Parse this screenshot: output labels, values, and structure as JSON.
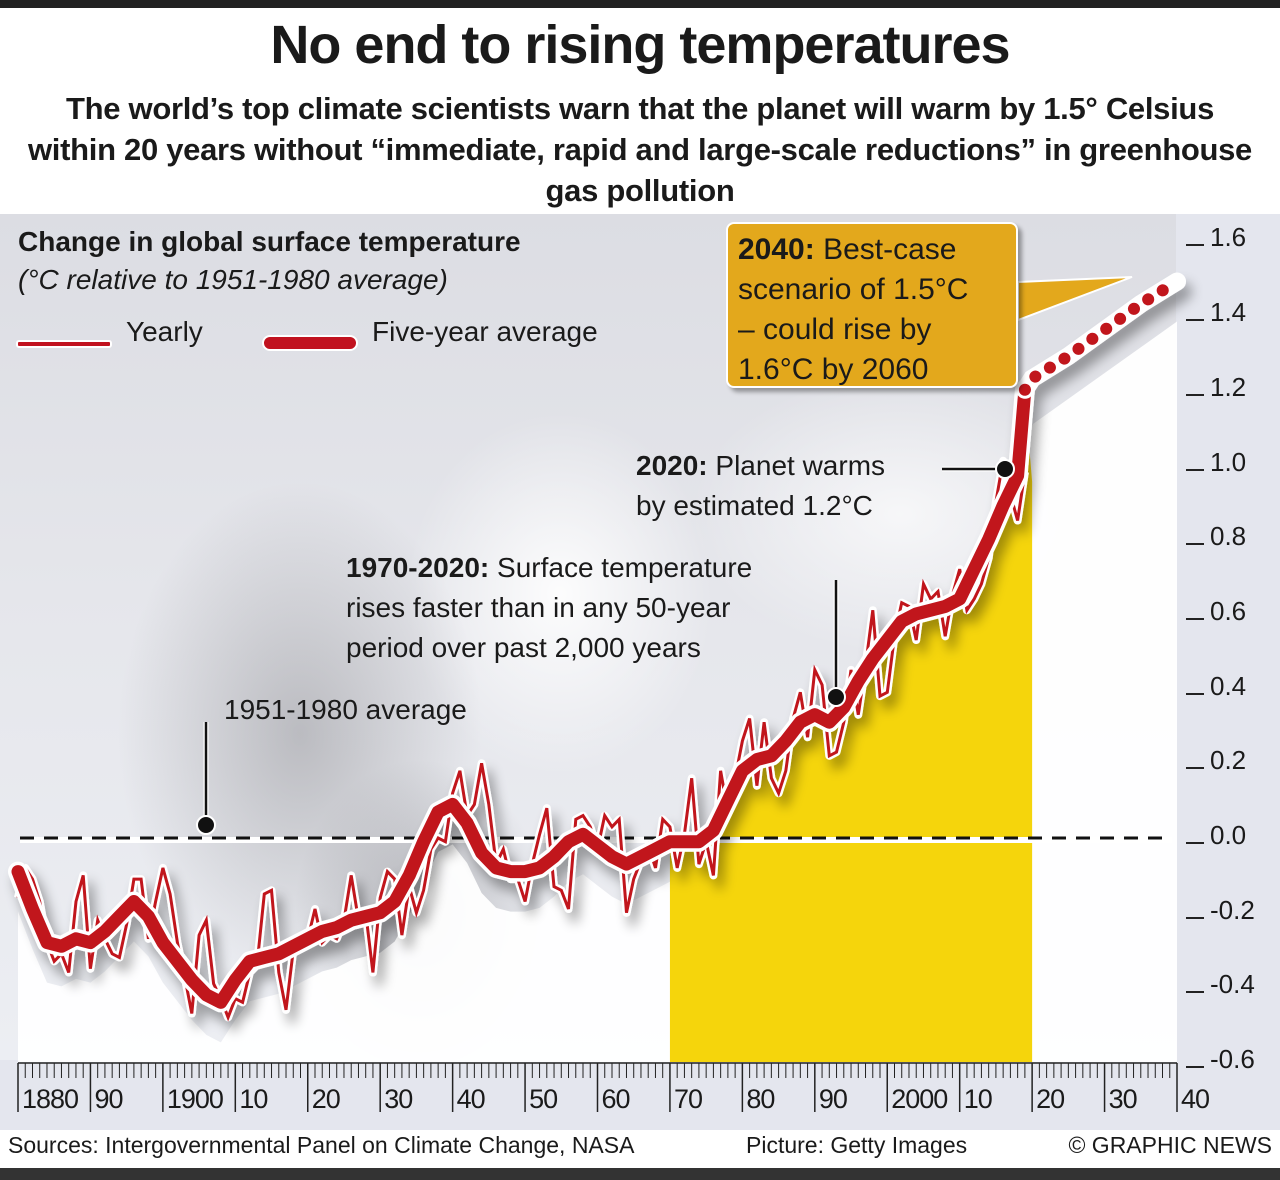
{
  "title": "No end to rising temperatures",
  "subtitle": "The world’s top climate scientists warn that the planet will warm by 1.5° Celsius within 20 years without “immediate, rapid and large-scale reductions” in greenhouse gas pollution",
  "footer": {
    "sources": "Sources: Intergovernmental Panel on Climate Change, NASA",
    "picture": "Picture: Getty Images",
    "copyright": "© GRAPHIC NEWS"
  },
  "colors": {
    "line": "#c1121f",
    "highlight_band": "#f5d50c",
    "callout": "#e3a81c"
  },
  "chart_data": {
    "type": "line",
    "title": "Change in global surface temperature",
    "subtitle": "(°C relative to 1951-1980 average)",
    "xlabel": "",
    "ylabel": "°C",
    "xlim": [
      1880,
      2040
    ],
    "ylim": [
      -0.6,
      1.6
    ],
    "y_ticks": [
      "1.6",
      "1.4",
      "1.2",
      "1.0",
      "0.8",
      "0.6",
      "0.4",
      "0.2",
      "0.0",
      "-0.2",
      "-0.4",
      "-0.6"
    ],
    "y_tick_values": [
      1.6,
      1.4,
      1.2,
      1.0,
      0.8,
      0.6,
      0.4,
      0.2,
      0.0,
      -0.2,
      -0.4,
      -0.6
    ],
    "x_ticks": [
      "1880",
      "90",
      "1900",
      "10",
      "20",
      "30",
      "40",
      "50",
      "60",
      "70",
      "80",
      "90",
      "2000",
      "10",
      "20",
      "30",
      "40"
    ],
    "x_tick_values": [
      1880,
      1890,
      1900,
      1910,
      1920,
      1930,
      1940,
      1950,
      1960,
      1970,
      1980,
      1990,
      2000,
      2010,
      2020,
      2030,
      2040
    ],
    "legend": [
      "Yearly",
      "Five-year average"
    ],
    "reference_line": {
      "label": "1951-1980 average",
      "value": 0.0
    },
    "highlight_range": {
      "from": 1970,
      "to": 2020,
      "label": "1970-2020"
    },
    "series": [
      {
        "name": "Five-year average",
        "x": [
          1880,
          1882,
          1884,
          1886,
          1888,
          1890,
          1892,
          1894,
          1896,
          1898,
          1900,
          1902,
          1904,
          1906,
          1908,
          1910,
          1912,
          1914,
          1916,
          1918,
          1920,
          1922,
          1924,
          1926,
          1928,
          1930,
          1932,
          1934,
          1936,
          1938,
          1940,
          1942,
          1944,
          1946,
          1948,
          1950,
          1952,
          1954,
          1956,
          1958,
          1960,
          1962,
          1964,
          1966,
          1968,
          1970,
          1972,
          1974,
          1976,
          1978,
          1980,
          1982,
          1984,
          1986,
          1988,
          1990,
          1992,
          1994,
          1996,
          1998,
          2000,
          2002,
          2004,
          2006,
          2008,
          2010,
          2012,
          2014,
          2016,
          2018,
          2019
        ],
        "values": [
          -0.09,
          -0.19,
          -0.28,
          -0.29,
          -0.27,
          -0.28,
          -0.25,
          -0.21,
          -0.17,
          -0.21,
          -0.28,
          -0.33,
          -0.38,
          -0.42,
          -0.44,
          -0.38,
          -0.33,
          -0.32,
          -0.31,
          -0.29,
          -0.27,
          -0.25,
          -0.24,
          -0.22,
          -0.21,
          -0.2,
          -0.17,
          -0.1,
          -0.01,
          0.07,
          0.09,
          0.04,
          -0.04,
          -0.08,
          -0.09,
          -0.09,
          -0.08,
          -0.05,
          -0.01,
          0.01,
          -0.02,
          -0.05,
          -0.07,
          -0.05,
          -0.03,
          -0.01,
          -0.01,
          -0.01,
          0.02,
          0.1,
          0.18,
          0.21,
          0.22,
          0.26,
          0.31,
          0.33,
          0.31,
          0.35,
          0.42,
          0.48,
          0.53,
          0.58,
          0.6,
          0.61,
          0.62,
          0.64,
          0.72,
          0.8,
          0.89,
          0.97,
          1.2
        ]
      },
      {
        "name": "Projection (best-case)",
        "style": "dotted",
        "x": [
          2019,
          2020,
          2025,
          2030,
          2035,
          2040
        ],
        "values": [
          1.2,
          1.23,
          1.29,
          1.36,
          1.43,
          1.49
        ]
      },
      {
        "name": "Yearly",
        "x": [
          1880,
          1881,
          1882,
          1883,
          1884,
          1885,
          1886,
          1887,
          1888,
          1889,
          1890,
          1891,
          1892,
          1893,
          1894,
          1895,
          1896,
          1897,
          1898,
          1899,
          1900,
          1901,
          1902,
          1903,
          1904,
          1905,
          1906,
          1907,
          1908,
          1909,
          1910,
          1911,
          1912,
          1913,
          1914,
          1915,
          1916,
          1917,
          1918,
          1919,
          1920,
          1921,
          1922,
          1923,
          1924,
          1925,
          1926,
          1927,
          1928,
          1929,
          1930,
          1931,
          1932,
          1933,
          1934,
          1935,
          1936,
          1937,
          1938,
          1939,
          1940,
          1941,
          1942,
          1943,
          1944,
          1945,
          1946,
          1947,
          1948,
          1949,
          1950,
          1951,
          1952,
          1953,
          1954,
          1955,
          1956,
          1957,
          1958,
          1959,
          1960,
          1961,
          1962,
          1963,
          1964,
          1965,
          1966,
          1967,
          1968,
          1969,
          1970,
          1971,
          1972,
          1973,
          1974,
          1975,
          1976,
          1977,
          1978,
          1979,
          1980,
          1981,
          1982,
          1983,
          1984,
          1985,
          1986,
          1987,
          1988,
          1989,
          1990,
          1991,
          1992,
          1993,
          1994,
          1995,
          1996,
          1997,
          1998,
          1999,
          2000,
          2001,
          2002,
          2003,
          2004,
          2005,
          2006,
          2007,
          2008,
          2009,
          2010,
          2011,
          2012,
          2013,
          2014,
          2015,
          2016,
          2017,
          2018,
          2019
        ],
        "values": [
          -0.16,
          -0.08,
          -0.11,
          -0.17,
          -0.28,
          -0.33,
          -0.31,
          -0.36,
          -0.17,
          -0.1,
          -0.35,
          -0.22,
          -0.27,
          -0.31,
          -0.32,
          -0.23,
          -0.11,
          -0.11,
          -0.27,
          -0.17,
          -0.08,
          -0.15,
          -0.28,
          -0.37,
          -0.47,
          -0.26,
          -0.22,
          -0.39,
          -0.43,
          -0.48,
          -0.43,
          -0.44,
          -0.36,
          -0.34,
          -0.15,
          -0.14,
          -0.36,
          -0.46,
          -0.3,
          -0.27,
          -0.27,
          -0.19,
          -0.28,
          -0.26,
          -0.27,
          -0.22,
          -0.1,
          -0.22,
          -0.2,
          -0.36,
          -0.16,
          -0.09,
          -0.11,
          -0.26,
          -0.13,
          -0.2,
          -0.14,
          -0.03,
          -0.0,
          -0.01,
          0.12,
          0.18,
          0.06,
          0.09,
          0.2,
          0.09,
          -0.07,
          -0.03,
          -0.11,
          -0.11,
          -0.17,
          -0.07,
          0.01,
          0.08,
          -0.13,
          -0.14,
          -0.19,
          0.05,
          0.06,
          0.03,
          -0.03,
          0.06,
          0.03,
          0.05,
          -0.2,
          -0.11,
          -0.06,
          -0.02,
          -0.08,
          0.05,
          0.03,
          -0.08,
          0.01,
          0.16,
          -0.07,
          -0.01,
          -0.1,
          0.18,
          0.07,
          0.16,
          0.26,
          0.32,
          0.14,
          0.31,
          0.16,
          0.12,
          0.18,
          0.32,
          0.39,
          0.27,
          0.45,
          0.41,
          0.22,
          0.23,
          0.31,
          0.45,
          0.33,
          0.46,
          0.61,
          0.38,
          0.39,
          0.54,
          0.63,
          0.62,
          0.53,
          0.68,
          0.64,
          0.66,
          0.54,
          0.65,
          0.72,
          0.61,
          0.64,
          0.68,
          0.75,
          0.9,
          1.01,
          0.92,
          0.85,
          0.98
        ]
      }
    ],
    "annotations": [
      {
        "bold": "2040:",
        "text": "Best-case scenario of 1.5°C – could rise by 1.6°C by 2060"
      },
      {
        "bold": "2020:",
        "text": "Planet warms by estimated 1.2°C"
      },
      {
        "bold": "1970-2020:",
        "text": "Surface temperature rises faster than in any 50-year period over past 2,000 years"
      },
      {
        "bold": "",
        "text": "1951-1980 average"
      }
    ]
  },
  "annotations_display": {
    "callout_2040": {
      "bold": "2040:",
      "lines": [
        " Best-case",
        "scenario of 1.5°C",
        "– could rise by",
        "1.6°C by 2060"
      ]
    },
    "note_2020": {
      "bold": "2020:",
      "line1": " Planet warms",
      "line2": "by estimated 1.2°C"
    },
    "note_1970": {
      "bold": "1970-2020:",
      "line1": " Surface temperature",
      "line2": "rises faster than in any 50-year",
      "line3": "period over past 2,000 years"
    },
    "note_avg": "1951-1980 average"
  }
}
